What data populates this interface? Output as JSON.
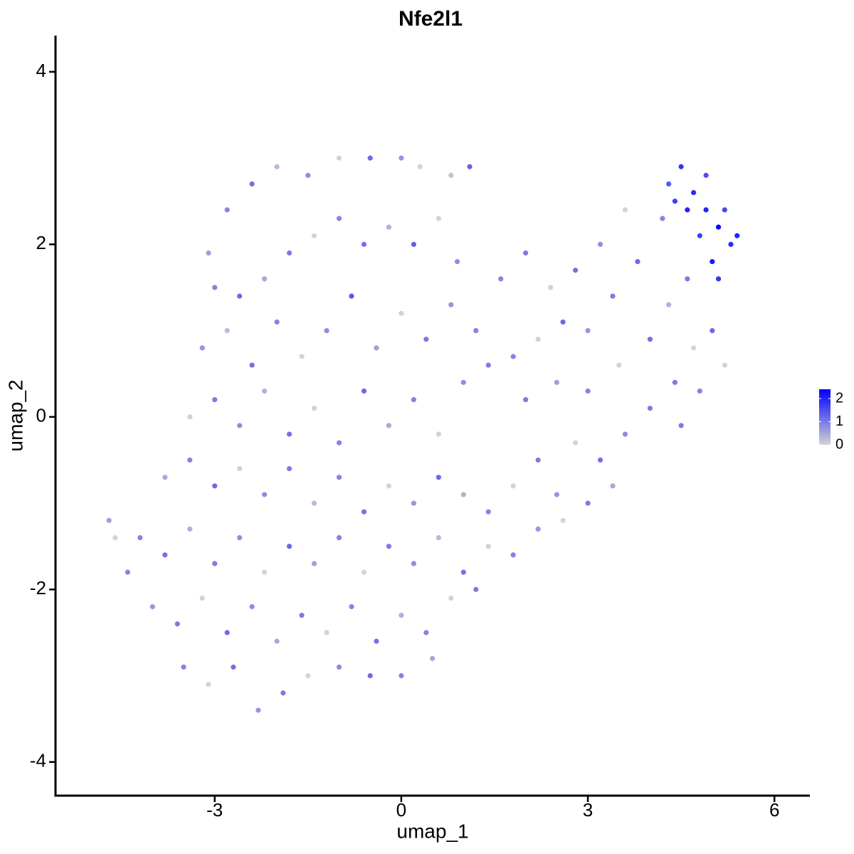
{
  "chart_data": {
    "type": "scatter",
    "title": "Nfe2l1",
    "xlabel": "umap_1",
    "ylabel": "umap_2",
    "xlim": [
      -5.56,
      6.57
    ],
    "ylim": [
      -4.39,
      4.42
    ],
    "xticks": [
      -3,
      0,
      3,
      6
    ],
    "yticks": [
      -4,
      -2,
      0,
      2,
      4
    ],
    "color_low": "#d3d3d3",
    "color_high": "#0000ff",
    "colorbar_lim": [
      0,
      2.4
    ],
    "colorbar_ticks": [
      0,
      1,
      2
    ],
    "points": [
      [
        -3.1,
        1.9,
        0.6
      ],
      [
        -2.8,
        2.4,
        0.9
      ],
      [
        -2.4,
        2.7,
        1.1
      ],
      [
        -2.0,
        2.9,
        0.3
      ],
      [
        -1.5,
        2.8,
        0.8
      ],
      [
        -1.0,
        3.0,
        0.0
      ],
      [
        -0.5,
        3.0,
        1.2
      ],
      [
        0.0,
        3.0,
        0.7
      ],
      [
        0.3,
        2.9,
        0.0
      ],
      [
        0.8,
        2.8,
        0.2
      ],
      [
        1.1,
        2.9,
        1.3
      ],
      [
        -3.0,
        1.5,
        0.9
      ],
      [
        -2.6,
        1.4,
        1.2
      ],
      [
        -2.2,
        1.6,
        0.5
      ],
      [
        -1.8,
        1.9,
        1.0
      ],
      [
        -1.4,
        2.1,
        0.0
      ],
      [
        -1.0,
        2.3,
        0.9
      ],
      [
        -0.6,
        2.0,
        1.1
      ],
      [
        -0.2,
        2.2,
        0.4
      ],
      [
        0.2,
        2.0,
        1.3
      ],
      [
        0.6,
        2.3,
        0.0
      ],
      [
        0.9,
        1.8,
        0.8
      ],
      [
        -3.2,
        0.8,
        0.7
      ],
      [
        -2.8,
        1.0,
        0.3
      ],
      [
        -2.4,
        0.6,
        1.1
      ],
      [
        -2.0,
        1.1,
        0.9
      ],
      [
        -1.6,
        0.7,
        0.0
      ],
      [
        -1.2,
        1.0,
        0.8
      ],
      [
        -0.8,
        1.4,
        1.4
      ],
      [
        -0.4,
        0.8,
        0.6
      ],
      [
        0.0,
        1.2,
        0.0
      ],
      [
        0.4,
        0.9,
        1.0
      ],
      [
        0.8,
        1.3,
        0.7
      ],
      [
        1.2,
        1.0,
        0.9
      ],
      [
        -3.4,
        0.0,
        0.0
      ],
      [
        -3.0,
        0.2,
        1.0
      ],
      [
        -2.6,
        -0.1,
        0.8
      ],
      [
        -2.2,
        0.3,
        0.4
      ],
      [
        -1.8,
        -0.2,
        1.1
      ],
      [
        -1.4,
        0.1,
        0.0
      ],
      [
        -1.0,
        -0.3,
        0.9
      ],
      [
        -0.6,
        0.3,
        1.2
      ],
      [
        -0.2,
        -0.1,
        0.5
      ],
      [
        0.2,
        0.2,
        0.9
      ],
      [
        0.6,
        -0.2,
        0.0
      ],
      [
        1.0,
        0.4,
        0.8
      ],
      [
        1.4,
        0.6,
        1.0
      ],
      [
        -3.8,
        -0.7,
        0.5
      ],
      [
        -3.4,
        -0.5,
        0.9
      ],
      [
        -3.0,
        -0.8,
        1.2
      ],
      [
        -2.6,
        -0.6,
        0.0
      ],
      [
        -2.2,
        -0.9,
        0.8
      ],
      [
        -1.8,
        -0.6,
        1.0
      ],
      [
        -1.4,
        -1.0,
        0.3
      ],
      [
        -1.0,
        -0.7,
        0.9
      ],
      [
        -0.6,
        -1.1,
        1.1
      ],
      [
        -0.2,
        -0.8,
        0.0
      ],
      [
        0.2,
        -1.0,
        0.7
      ],
      [
        0.6,
        -0.7,
        1.2
      ],
      [
        1.0,
        -0.9,
        0.4
      ],
      [
        1.4,
        -1.1,
        0.9
      ],
      [
        1.8,
        -0.8,
        0.0
      ],
      [
        2.2,
        -0.5,
        1.0
      ],
      [
        -4.2,
        -1.4,
        0.9
      ],
      [
        -3.8,
        -1.6,
        1.1
      ],
      [
        -3.4,
        -1.3,
        0.4
      ],
      [
        -3.0,
        -1.7,
        1.0
      ],
      [
        -2.6,
        -1.4,
        0.8
      ],
      [
        -2.2,
        -1.8,
        0.0
      ],
      [
        -1.8,
        -1.5,
        1.2
      ],
      [
        -1.4,
        -1.7,
        0.6
      ],
      [
        -1.0,
        -1.4,
        0.9
      ],
      [
        -0.6,
        -1.8,
        0.0
      ],
      [
        -0.2,
        -1.5,
        1.0
      ],
      [
        0.2,
        -1.7,
        0.8
      ],
      [
        0.6,
        -1.4,
        0.3
      ],
      [
        1.0,
        -1.8,
        1.1
      ],
      [
        1.4,
        -1.5,
        0.0
      ],
      [
        1.8,
        -1.6,
        0.9
      ],
      [
        2.2,
        -1.3,
        0.7
      ],
      [
        2.6,
        -1.2,
        0.0
      ],
      [
        -4.0,
        -2.2,
        0.7
      ],
      [
        -3.6,
        -2.4,
        1.0
      ],
      [
        -3.2,
        -2.1,
        0.0
      ],
      [
        -2.8,
        -2.5,
        1.2
      ],
      [
        -2.4,
        -2.2,
        0.8
      ],
      [
        -2.0,
        -2.6,
        0.5
      ],
      [
        -1.6,
        -2.3,
        1.0
      ],
      [
        -1.2,
        -2.5,
        0.0
      ],
      [
        -0.8,
        -2.2,
        0.9
      ],
      [
        -0.4,
        -2.6,
        1.1
      ],
      [
        0.0,
        -2.3,
        0.4
      ],
      [
        0.4,
        -2.5,
        0.9
      ],
      [
        0.8,
        -2.1,
        0.0
      ],
      [
        1.2,
        -2.0,
        1.0
      ],
      [
        -3.5,
        -2.9,
        0.9
      ],
      [
        -3.1,
        -3.1,
        0.0
      ],
      [
        -2.7,
        -2.9,
        1.1
      ],
      [
        -2.3,
        -3.4,
        0.7
      ],
      [
        -1.9,
        -3.2,
        1.0
      ],
      [
        -1.5,
        -3.0,
        0.0
      ],
      [
        -1.0,
        -2.9,
        0.8
      ],
      [
        -0.5,
        -3.0,
        1.2
      ],
      [
        0.0,
        -3.0,
        0.9
      ],
      [
        0.5,
        -2.8,
        0.5
      ],
      [
        -4.7,
        -1.2,
        0.6
      ],
      [
        -4.6,
        -1.4,
        0.0
      ],
      [
        -4.4,
        -1.8,
        0.9
      ],
      [
        1.6,
        1.6,
        0.9
      ],
      [
        2.0,
        1.9,
        1.0
      ],
      [
        2.4,
        1.5,
        0.0
      ],
      [
        2.8,
        1.7,
        1.1
      ],
      [
        3.2,
        2.0,
        0.8
      ],
      [
        3.6,
        2.4,
        0.0
      ],
      [
        3.4,
        1.4,
        1.0
      ],
      [
        3.0,
        1.0,
        0.7
      ],
      [
        2.6,
        1.1,
        1.2
      ],
      [
        2.2,
        0.9,
        0.0
      ],
      [
        1.8,
        0.7,
        0.9
      ],
      [
        2.0,
        0.2,
        1.0
      ],
      [
        2.5,
        0.4,
        0.6
      ],
      [
        3.0,
        0.3,
        0.9
      ],
      [
        3.5,
        0.6,
        0.0
      ],
      [
        4.0,
        0.9,
        1.1
      ],
      [
        4.3,
        1.3,
        0.4
      ],
      [
        3.8,
        1.8,
        1.2
      ],
      [
        4.2,
        2.3,
        0.9
      ],
      [
        4.0,
        0.1,
        1.0
      ],
      [
        3.6,
        -0.2,
        0.8
      ],
      [
        3.2,
        -0.5,
        1.1
      ],
      [
        2.8,
        -0.3,
        0.0
      ],
      [
        2.5,
        -0.9,
        0.7
      ],
      [
        3.0,
        -1.0,
        1.0
      ],
      [
        3.4,
        -0.8,
        0.5
      ],
      [
        4.4,
        0.4,
        1.0
      ],
      [
        4.7,
        0.8,
        0.0
      ],
      [
        5.0,
        1.0,
        1.2
      ],
      [
        4.8,
        0.3,
        0.9
      ],
      [
        4.5,
        -0.1,
        1.0
      ],
      [
        5.2,
        0.6,
        0.0
      ],
      [
        4.6,
        1.6,
        1.0
      ],
      [
        4.5,
        2.9,
        1.8
      ],
      [
        4.7,
        2.6,
        1.9
      ],
      [
        4.9,
        2.4,
        2.0
      ],
      [
        5.1,
        2.2,
        2.3
      ],
      [
        5.3,
        2.0,
        1.9
      ],
      [
        5.0,
        1.8,
        2.1
      ],
      [
        4.8,
        2.1,
        1.7
      ],
      [
        4.6,
        2.4,
        2.0
      ],
      [
        5.2,
        2.4,
        1.6
      ],
      [
        4.4,
        2.5,
        1.7
      ],
      [
        4.9,
        2.8,
        1.5
      ],
      [
        5.4,
        2.1,
        2.0
      ],
      [
        4.3,
        2.7,
        1.4
      ],
      [
        5.1,
        1.6,
        1.8
      ]
    ]
  }
}
